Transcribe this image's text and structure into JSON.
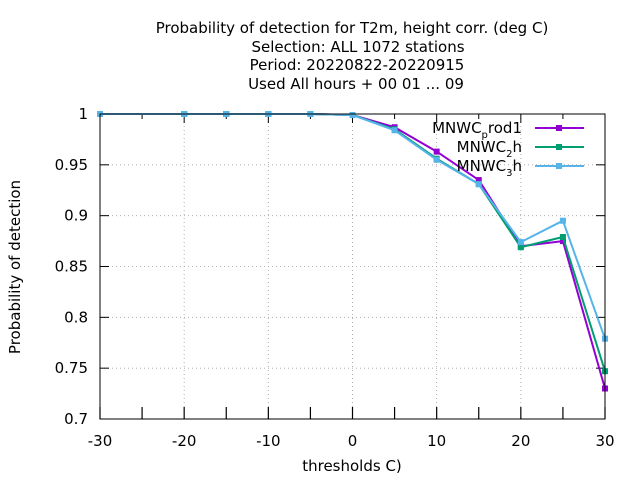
{
  "chart_data": {
    "type": "line",
    "title_lines": [
      "Probability of detection  for T2m, height corr. (deg C)",
      "Selection: ALL   1072 stations",
      "Period: 20220822-20220915",
      "Used  All hours + 00 01 ... 09"
    ],
    "xlabel": "thresholds C)",
    "ylabel": "Probability of detection",
    "xlim": [
      -30,
      30
    ],
    "ylim": [
      0.7,
      1.0
    ],
    "xticks": [
      "-30",
      "-20",
      "-10",
      "0",
      "10",
      "20",
      "30"
    ],
    "yticks": [
      "0.7",
      "0.75",
      "0.8",
      "0.85",
      "0.9",
      "0.95",
      "1"
    ],
    "grid": true,
    "legend_position": "top-right",
    "x": [
      -30,
      -20,
      -15,
      -10,
      -5,
      0,
      5,
      10,
      15,
      20,
      25,
      30
    ],
    "series": [
      {
        "legend": {
          "base": "MNWC",
          "sub": "p",
          "rest": "rod1"
        },
        "color": "#9400d3",
        "values": [
          1.0,
          1.0,
          1.0,
          1.0,
          1.0,
          0.999,
          0.987,
          0.963,
          0.935,
          0.87,
          0.875,
          0.73
        ]
      },
      {
        "legend": {
          "base": "MNWC",
          "sub": "2",
          "rest": "h"
        },
        "color": "#009e73",
        "values": [
          1.0,
          1.0,
          1.0,
          1.0,
          1.0,
          0.999,
          0.985,
          0.956,
          0.931,
          0.869,
          0.879,
          0.747
        ]
      },
      {
        "legend": {
          "base": "MNWC",
          "sub": "3",
          "rest": "h"
        },
        "color": "#56b4e9",
        "values": [
          1.0,
          1.0,
          1.0,
          1.0,
          1.0,
          0.999,
          0.984,
          0.955,
          0.931,
          0.874,
          0.895,
          0.779
        ]
      }
    ]
  }
}
